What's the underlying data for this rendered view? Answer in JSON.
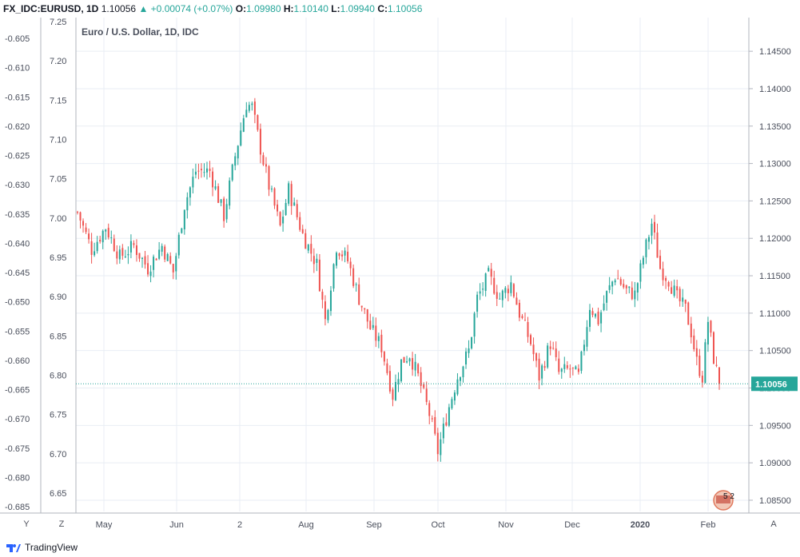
{
  "header": {
    "symbol": "FX_IDC:EURUSD, 1D",
    "last": "1.10056",
    "change": "+0.00074 (+0.07%)",
    "o_label": "O:",
    "o": "1.09980",
    "h_label": "H:",
    "h": "1.10140",
    "l_label": "L:",
    "l": "1.09940",
    "c_label": "C:",
    "c": "1.10056"
  },
  "chart_title": "Euro / U.S. Dollar, 1D, IDC",
  "price_tag": "1.10056",
  "footer": {
    "logo_text": "TradingView",
    "left_btn_1": "Y",
    "left_btn_2": "Z",
    "right_btn": "A"
  },
  "legend_badge": "5 2",
  "colors": {
    "up": "#26a69a",
    "down": "#ef5350",
    "grid": "#e9eef4",
    "axis_text": "#4a4f5c"
  },
  "chart_data": {
    "type": "candlestick",
    "title": "Euro / U.S. Dollar, 1D, IDC",
    "right_axis": {
      "ticks": [
        "1.14500",
        "1.14000",
        "1.13500",
        "1.13000",
        "1.12500",
        "1.12000",
        "1.11500",
        "1.11000",
        "1.10500",
        "1.10000",
        "1.09500",
        "1.09000",
        "1.08500"
      ],
      "range": [
        1.0835,
        1.1495
      ]
    },
    "inner_left_axis": {
      "ticks": [
        "7.25",
        "7.20",
        "7.15",
        "7.10",
        "7.05",
        "7.00",
        "6.95",
        "6.90",
        "6.85",
        "6.80",
        "6.75",
        "6.70",
        "6.65"
      ]
    },
    "outer_left_axis": {
      "ticks": [
        "-0.605",
        "-0.610",
        "-0.615",
        "-0.620",
        "-0.625",
        "-0.630",
        "-0.635",
        "-0.640",
        "-0.645",
        "-0.650",
        "-0.655",
        "-0.660",
        "-0.665",
        "-0.670",
        "-0.675",
        "-0.680",
        "-0.685"
      ]
    },
    "x_ticks": [
      "May",
      "Jun",
      "2",
      "Aug",
      "Sep",
      "Oct",
      "Nov",
      "Dec",
      "2020",
      "Feb"
    ],
    "x_tick_bold": [
      false,
      false,
      false,
      false,
      false,
      false,
      false,
      false,
      true,
      false
    ],
    "last_price": 1.10056,
    "close_path": [
      [
        0,
        1.1235
      ],
      [
        5,
        1.1185
      ],
      [
        10,
        1.1215
      ],
      [
        15,
        1.1175
      ],
      [
        20,
        1.119
      ],
      [
        25,
        1.116
      ],
      [
        30,
        1.119
      ],
      [
        34,
        1.1155
      ],
      [
        38,
        1.1245
      ],
      [
        42,
        1.129
      ],
      [
        47,
        1.129
      ],
      [
        52,
        1.123
      ],
      [
        56,
        1.131
      ],
      [
        60,
        1.138
      ],
      [
        62,
        1.1375
      ],
      [
        65,
        1.132
      ],
      [
        68,
        1.127
      ],
      [
        72,
        1.1215
      ],
      [
        75,
        1.1265
      ],
      [
        80,
        1.1205
      ],
      [
        85,
        1.1165
      ],
      [
        88,
        1.109
      ],
      [
        92,
        1.119
      ],
      [
        96,
        1.117
      ],
      [
        100,
        1.112
      ],
      [
        104,
        1.108
      ],
      [
        108,
        1.1055
      ],
      [
        112,
        1.099
      ],
      [
        115,
        1.1035
      ],
      [
        118,
        1.1045
      ],
      [
        121,
        1.1015
      ],
      [
        125,
        1.0965
      ],
      [
        128,
        1.0915
      ],
      [
        132,
        1.0975
      ],
      [
        135,
        1.1015
      ],
      [
        139,
        1.105
      ],
      [
        142,
        1.112
      ],
      [
        146,
        1.115
      ],
      [
        150,
        1.112
      ],
      [
        154,
        1.114
      ],
      [
        157,
        1.11
      ],
      [
        161,
        1.106
      ],
      [
        164,
        1.1015
      ],
      [
        168,
        1.106
      ],
      [
        171,
        1.102
      ],
      [
        175,
        1.1025
      ],
      [
        178,
        1.1015
      ],
      [
        182,
        1.111
      ],
      [
        185,
        1.109
      ],
      [
        188,
        1.1125
      ],
      [
        191,
        1.115
      ],
      [
        195,
        1.113
      ],
      [
        198,
        1.1125
      ],
      [
        201,
        1.1175
      ],
      [
        204,
        1.122
      ],
      [
        207,
        1.116
      ],
      [
        210,
        1.1145
      ],
      [
        213,
        1.112
      ],
      [
        216,
        1.1105
      ],
      [
        218,
        1.1075
      ],
      [
        220,
        1.1035
      ],
      [
        222,
        1.1015
      ],
      [
        224,
        1.109
      ],
      [
        226,
        1.104
      ],
      [
        228,
        1.1005
      ]
    ],
    "bars": 229
  }
}
